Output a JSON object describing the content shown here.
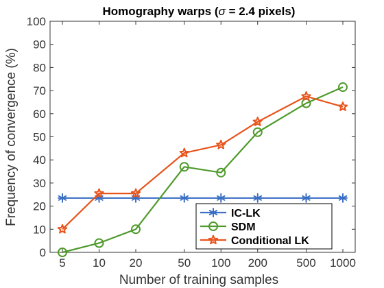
{
  "chart_data": {
    "type": "line",
    "title_parts": [
      "Homography warps (",
      "σ",
      " = 2.4 pixels)"
    ],
    "xlabel": "Number of training samples",
    "ylabel": "Frequency of convergence (%)",
    "x": [
      "5",
      "10",
      "20",
      "50",
      "100",
      "200",
      "500",
      "1000"
    ],
    "x_scale": "log",
    "ylim": [
      0,
      100
    ],
    "yticks": [
      "0",
      "10",
      "20",
      "30",
      "40",
      "50",
      "60",
      "70",
      "80",
      "90",
      "100"
    ],
    "grid": false,
    "legend_position": "bottom-right",
    "series": [
      {
        "name": "IC-LK",
        "color": "#3a6fc4",
        "marker": "asterisk",
        "values": [
          23.5,
          23.5,
          23.5,
          23.5,
          23.5,
          23.5,
          23.5,
          23.5
        ]
      },
      {
        "name": "SDM",
        "color": "#4f9a2b",
        "marker": "circle",
        "values": [
          0,
          4,
          10,
          37,
          34.5,
          52,
          64.5,
          71.5
        ]
      },
      {
        "name": "Conditional LK",
        "color": "#e8541c",
        "marker": "star",
        "values": [
          10,
          25.5,
          25.5,
          43,
          46.5,
          56.5,
          67.5,
          63
        ]
      }
    ]
  }
}
